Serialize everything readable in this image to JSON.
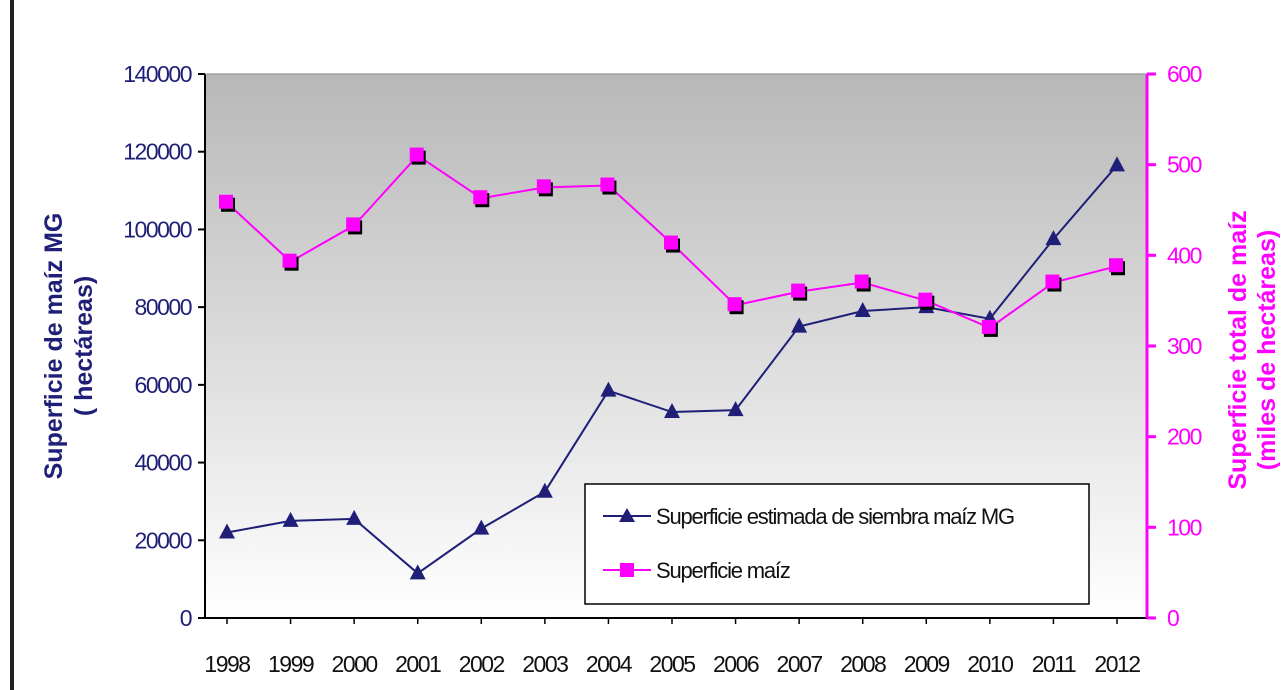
{
  "chart_data": {
    "type": "line",
    "x": [
      "1998",
      "1999",
      "2000",
      "2001",
      "2002",
      "2003",
      "2004",
      "2005",
      "2006",
      "2007",
      "2008",
      "2009",
      "2010",
      "2011",
      "2012"
    ],
    "series": [
      {
        "name": "Superficie estimada de siembra maíz MG",
        "axis": "left",
        "marker": "triangle",
        "color": "#1f1f78",
        "values": [
          22000,
          25000,
          25500,
          11500,
          23000,
          32500,
          58500,
          53000,
          53500,
          75000,
          79000,
          80000,
          77000,
          97500,
          116500
        ]
      },
      {
        "name": "Superficie maíz",
        "axis": "right",
        "marker": "square",
        "color": "#ff00ff",
        "values": [
          458,
          393,
          433,
          510,
          463,
          475,
          477,
          413,
          345,
          360,
          370,
          350,
          320,
          370,
          388
        ]
      }
    ],
    "y_left": {
      "label_line1": "Superficie de maíz MG",
      "label_line2": "( hectáreas)",
      "range": [
        0,
        140000
      ],
      "ticks": [
        "0",
        "20000",
        "40000",
        "60000",
        "80000",
        "100000",
        "120000",
        "140000"
      ]
    },
    "y_right": {
      "label_line1": "Superficie total de maíz",
      "label_line2": "(miles de hectáreas)",
      "range": [
        0,
        600
      ],
      "ticks": [
        "0",
        "100",
        "200",
        "300",
        "400",
        "500",
        "600"
      ]
    },
    "legend_position": "bottom-right (inside plot)",
    "grid": false,
    "plot_background": "gradient gray to white"
  },
  "colors": {
    "left_axis": "#1f1f78",
    "right_axis": "#ff00ff",
    "frame": "#000000"
  }
}
